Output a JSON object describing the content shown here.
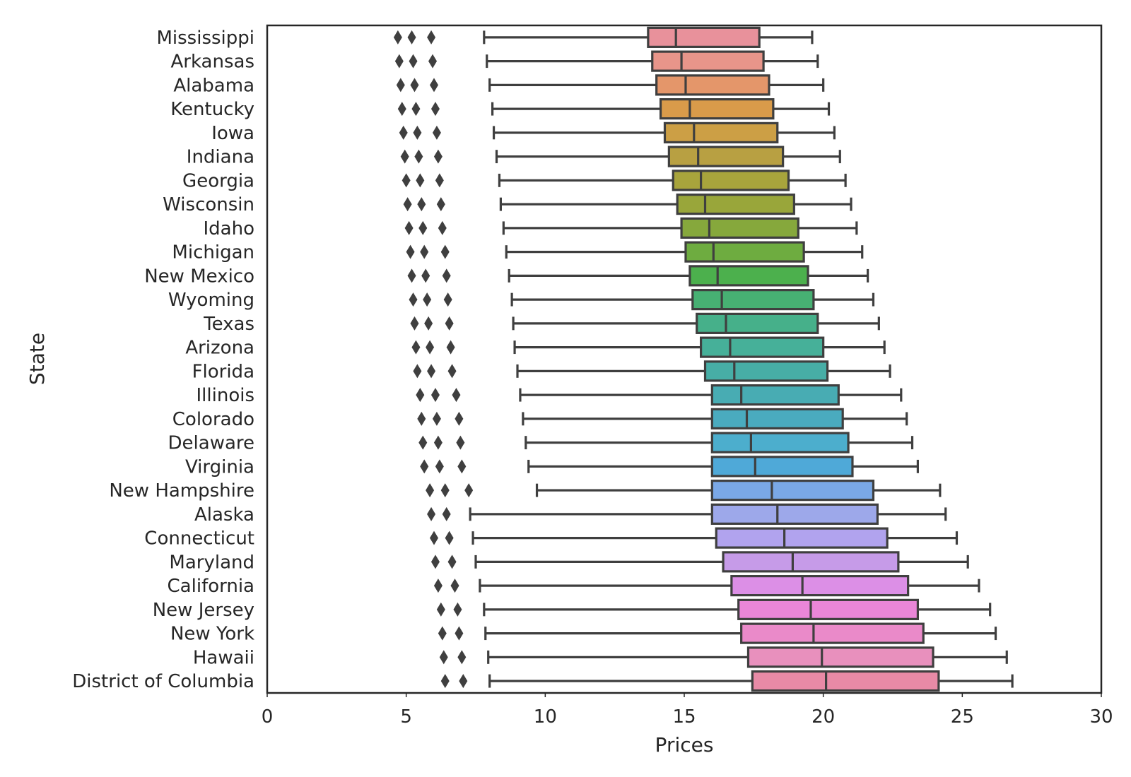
{
  "chart_data": {
    "type": "boxplot",
    "orientation": "horizontal",
    "xlabel": "Prices",
    "ylabel": "State",
    "xlim": [
      0,
      30
    ],
    "x_ticks": [
      0,
      5,
      10,
      15,
      20,
      25,
      30
    ],
    "grid": false,
    "legend": "none",
    "series": [
      {
        "name": "Mississippi",
        "color": "#e8919b",
        "whisker_low": 7.8,
        "q1": 13.7,
        "median": 14.7,
        "q3": 17.7,
        "whisker_high": 19.6,
        "outliers": [
          4.7,
          5.2,
          5.9
        ]
      },
      {
        "name": "Arkansas",
        "color": "#e8958a",
        "whisker_low": 7.9,
        "q1": 13.85,
        "median": 14.9,
        "q3": 17.85,
        "whisker_high": 19.8,
        "outliers": [
          4.75,
          5.25,
          5.95
        ]
      },
      {
        "name": "Alabama",
        "color": "#e4966a",
        "whisker_low": 8.0,
        "q1": 14.0,
        "median": 15.05,
        "q3": 18.05,
        "whisker_high": 20.0,
        "outliers": [
          4.8,
          5.3,
          6.0
        ]
      },
      {
        "name": "Kentucky",
        "color": "#d99b4a",
        "whisker_low": 8.1,
        "q1": 14.15,
        "median": 15.2,
        "q3": 18.2,
        "whisker_high": 20.2,
        "outliers": [
          4.85,
          5.35,
          6.05
        ]
      },
      {
        "name": "Iowa",
        "color": "#cc9f45",
        "whisker_low": 8.15,
        "q1": 14.3,
        "median": 15.35,
        "q3": 18.35,
        "whisker_high": 20.4,
        "outliers": [
          4.9,
          5.4,
          6.1
        ]
      },
      {
        "name": "Indiana",
        "color": "#b8a042",
        "whisker_low": 8.25,
        "q1": 14.45,
        "median": 15.5,
        "q3": 18.55,
        "whisker_high": 20.6,
        "outliers": [
          4.95,
          5.45,
          6.15
        ]
      },
      {
        "name": "Georgia",
        "color": "#a8a43c",
        "whisker_low": 8.35,
        "q1": 14.6,
        "median": 15.6,
        "q3": 18.75,
        "whisker_high": 20.8,
        "outliers": [
          5.0,
          5.5,
          6.2
        ]
      },
      {
        "name": "Wisconsin",
        "color": "#99a63a",
        "whisker_low": 8.4,
        "q1": 14.75,
        "median": 15.75,
        "q3": 18.95,
        "whisker_high": 21.0,
        "outliers": [
          5.05,
          5.55,
          6.25
        ]
      },
      {
        "name": "Idaho",
        "color": "#86a83c",
        "whisker_low": 8.5,
        "q1": 14.9,
        "median": 15.9,
        "q3": 19.1,
        "whisker_high": 21.2,
        "outliers": [
          5.1,
          5.6,
          6.3
        ]
      },
      {
        "name": "Michigan",
        "color": "#6eac40",
        "whisker_low": 8.6,
        "q1": 15.05,
        "median": 16.05,
        "q3": 19.3,
        "whisker_high": 21.4,
        "outliers": [
          5.15,
          5.65,
          6.4
        ]
      },
      {
        "name": "New Mexico",
        "color": "#4cb04d",
        "whisker_low": 8.7,
        "q1": 15.2,
        "median": 16.2,
        "q3": 19.45,
        "whisker_high": 21.6,
        "outliers": [
          5.2,
          5.7,
          6.45
        ]
      },
      {
        "name": "Wyoming",
        "color": "#47b073",
        "whisker_low": 8.8,
        "q1": 15.3,
        "median": 16.35,
        "q3": 19.65,
        "whisker_high": 21.8,
        "outliers": [
          5.25,
          5.75,
          6.5
        ]
      },
      {
        "name": "Texas",
        "color": "#46b08a",
        "whisker_low": 8.85,
        "q1": 15.45,
        "median": 16.5,
        "q3": 19.8,
        "whisker_high": 22.0,
        "outliers": [
          5.3,
          5.8,
          6.55
        ]
      },
      {
        "name": "Arizona",
        "color": "#46b099",
        "whisker_low": 8.9,
        "q1": 15.6,
        "median": 16.65,
        "q3": 20.0,
        "whisker_high": 22.2,
        "outliers": [
          5.35,
          5.85,
          6.6
        ]
      },
      {
        "name": "Florida",
        "color": "#47aea6",
        "whisker_low": 9.0,
        "q1": 15.75,
        "median": 16.8,
        "q3": 20.15,
        "whisker_high": 22.4,
        "outliers": [
          5.4,
          5.9,
          6.65
        ]
      },
      {
        "name": "Illinois",
        "color": "#48acb3",
        "whisker_low": 9.1,
        "q1": 16.0,
        "median": 17.05,
        "q3": 20.55,
        "whisker_high": 22.8,
        "outliers": [
          5.5,
          6.05,
          6.8
        ]
      },
      {
        "name": "Colorado",
        "color": "#4aabbf",
        "whisker_low": 9.2,
        "q1": 16.0,
        "median": 17.25,
        "q3": 20.7,
        "whisker_high": 23.0,
        "outliers": [
          5.55,
          6.1,
          6.9
        ]
      },
      {
        "name": "Delaware",
        "color": "#4caecd",
        "whisker_low": 9.3,
        "q1": 16.0,
        "median": 17.4,
        "q3": 20.9,
        "whisker_high": 23.2,
        "outliers": [
          5.6,
          6.15,
          6.95
        ]
      },
      {
        "name": "Virginia",
        "color": "#4fa9d8",
        "whisker_low": 9.4,
        "q1": 16.0,
        "median": 17.55,
        "q3": 21.05,
        "whisker_high": 23.4,
        "outliers": [
          5.65,
          6.2,
          7.0
        ]
      },
      {
        "name": "New Hampshire",
        "color": "#7aa8e6",
        "whisker_low": 9.7,
        "q1": 16.0,
        "median": 18.15,
        "q3": 21.8,
        "whisker_high": 24.2,
        "outliers": [
          5.85,
          6.4,
          7.25
        ]
      },
      {
        "name": "Alaska",
        "color": "#9da8ea",
        "whisker_low": 7.3,
        "q1": 16.0,
        "median": 18.35,
        "q3": 21.95,
        "whisker_high": 24.4,
        "outliers": [
          5.9,
          6.45
        ]
      },
      {
        "name": "Connecticut",
        "color": "#b1a3ee",
        "whisker_low": 7.4,
        "q1": 16.15,
        "median": 18.6,
        "q3": 22.3,
        "whisker_high": 24.8,
        "outliers": [
          6.0,
          6.55
        ]
      },
      {
        "name": "Maryland",
        "color": "#c69be8",
        "whisker_low": 7.5,
        "q1": 16.4,
        "median": 18.9,
        "q3": 22.7,
        "whisker_high": 25.2,
        "outliers": [
          6.05,
          6.65
        ]
      },
      {
        "name": "California",
        "color": "#dc8fe6",
        "whisker_low": 7.65,
        "q1": 16.7,
        "median": 19.25,
        "q3": 23.05,
        "whisker_high": 25.6,
        "outliers": [
          6.15,
          6.75
        ]
      },
      {
        "name": "New Jersey",
        "color": "#ea86d8",
        "whisker_low": 7.8,
        "q1": 16.95,
        "median": 19.55,
        "q3": 23.4,
        "whisker_high": 26.0,
        "outliers": [
          6.25,
          6.85
        ]
      },
      {
        "name": "New York",
        "color": "#ea8ac9",
        "whisker_low": 7.85,
        "q1": 17.05,
        "median": 19.65,
        "q3": 23.6,
        "whisker_high": 26.2,
        "outliers": [
          6.3,
          6.9
        ]
      },
      {
        "name": "Hawaii",
        "color": "#e890bd",
        "whisker_low": 7.95,
        "q1": 17.3,
        "median": 19.95,
        "q3": 23.95,
        "whisker_high": 26.6,
        "outliers": [
          6.35,
          7.0
        ]
      },
      {
        "name": "District of Columbia",
        "color": "#e88aa6",
        "whisker_low": 8.0,
        "q1": 17.45,
        "median": 20.1,
        "q3": 24.15,
        "whisker_high": 26.8,
        "outliers": [
          6.4,
          7.05
        ]
      }
    ]
  }
}
